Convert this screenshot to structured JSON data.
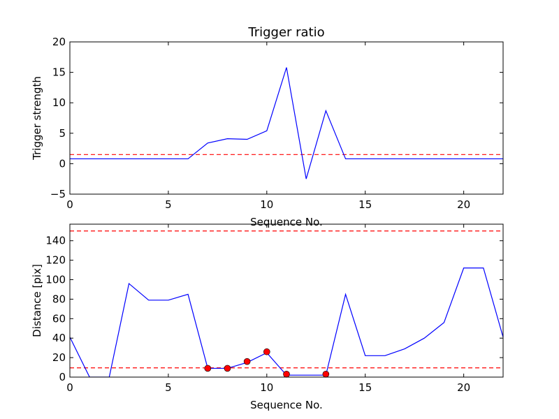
{
  "chart_data": [
    {
      "type": "line",
      "title": "Trigger ratio",
      "xlabel": "Sequence No.",
      "ylabel": "Trigger strength",
      "xlim": [
        0,
        22
      ],
      "ylim": [
        -5,
        20
      ],
      "xticks": [
        0,
        5,
        10,
        15,
        20
      ],
      "yticks": [
        -5,
        0,
        5,
        10,
        15,
        20
      ],
      "ytick_labels": [
        "−5",
        "0",
        "5",
        "10",
        "15",
        "20"
      ],
      "grid": false,
      "series": [
        {
          "color": "#0000ff",
          "style": "solid",
          "x": [
            0,
            1,
            2,
            3,
            4,
            5,
            6,
            7,
            8,
            9,
            10,
            11,
            12,
            13,
            14,
            15,
            16,
            17,
            18,
            19,
            20,
            21,
            22
          ],
          "y": [
            0.8,
            0.8,
            0.8,
            0.8,
            0.8,
            0.8,
            0.8,
            3.4,
            4.1,
            4.0,
            5.4,
            15.8,
            -2.5,
            8.7,
            0.8,
            0.8,
            0.8,
            0.8,
            0.8,
            0.8,
            0.8,
            0.8,
            0.8
          ]
        }
      ],
      "hlines": [
        {
          "y": 1.5,
          "color": "#ff0000",
          "style": "dashed"
        }
      ]
    },
    {
      "type": "line",
      "title": "",
      "xlabel": "Sequence No.",
      "ylabel": "Distance [pix]",
      "xlim": [
        0,
        22
      ],
      "ylim": [
        0,
        157
      ],
      "xticks": [
        0,
        5,
        10,
        15,
        20
      ],
      "yticks": [
        0,
        20,
        40,
        60,
        80,
        100,
        120,
        140
      ],
      "ytick_labels": [
        "0",
        "20",
        "40",
        "60",
        "80",
        "100",
        "120",
        "140"
      ],
      "grid": false,
      "series": [
        {
          "color": "#0000ff",
          "style": "solid",
          "x": [
            0,
            1,
            2,
            3,
            4,
            5,
            6,
            7,
            8,
            9,
            10,
            11,
            12,
            13,
            14,
            15,
            16,
            17,
            18,
            19,
            20,
            21,
            22
          ],
          "y": [
            41,
            0,
            0,
            96,
            79,
            79,
            85,
            9,
            9,
            15,
            25,
            2,
            2,
            2,
            85,
            22,
            22,
            29,
            40,
            56,
            112,
            112,
            41
          ]
        }
      ],
      "markers": {
        "color": "#ff0000",
        "x": [
          7,
          8,
          9,
          10,
          11,
          13
        ],
        "y": [
          9,
          9,
          16,
          26,
          3,
          3
        ]
      },
      "hlines": [
        {
          "y": 150,
          "color": "#ff0000",
          "style": "dashed"
        },
        {
          "y": 9.5,
          "color": "#ff0000",
          "style": "dashed"
        }
      ]
    }
  ]
}
